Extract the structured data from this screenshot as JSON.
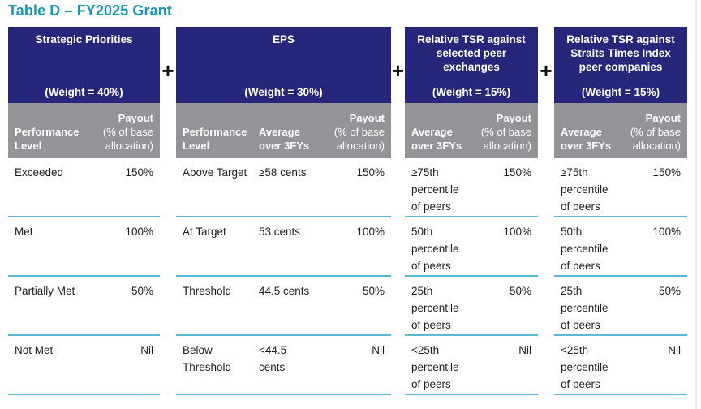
{
  "title": "Table D – FY2025 Grant",
  "plus_sign": "+",
  "colors": {
    "title_teal": "#1898b4",
    "header_navy": "#26277b",
    "subheader_gray": "#939398",
    "row_divider_teal": "#5bb7d2",
    "body_text": "#1e1e21"
  },
  "shared_headers": {
    "performance_level": "Performance Level",
    "average_over_3fys": "Average over 3FYs",
    "payout": "Payout",
    "payout_subtext": "(% of base allocation)"
  },
  "tables": [
    {
      "name": "Strategic Priorities",
      "weight": "(Weight = 40%)",
      "rows": [
        {
          "level": "Exceeded",
          "payout": "150%"
        },
        {
          "level": "Met",
          "payout": "100%"
        },
        {
          "level": "Partially Met",
          "payout": "50%"
        },
        {
          "level": "Not Met",
          "payout": "Nil"
        }
      ]
    },
    {
      "name": "EPS",
      "weight": "(Weight = 30%)",
      "rows": [
        {
          "level": "Above Target",
          "average": "≥58 cents",
          "payout": "150%"
        },
        {
          "level": "At Target",
          "average": "53 cents",
          "payout": "100%"
        },
        {
          "level": "Threshold",
          "average": "44.5 cents",
          "payout": "50%"
        },
        {
          "level": "Below Threshold",
          "average": "<44.5 cents",
          "payout": "Nil"
        }
      ]
    },
    {
      "name": "Relative TSR against selected peer exchanges",
      "weight": "(Weight = 15%)",
      "rows": [
        {
          "average": "≥75th percentile of peers",
          "payout": "150%"
        },
        {
          "average": "50th percentile of peers",
          "payout": "100%"
        },
        {
          "average": "25th percentile of peers",
          "payout": "50%"
        },
        {
          "average": "<25th percentile of peers",
          "payout": "Nil"
        }
      ]
    },
    {
      "name": "Relative TSR against Straits Times Index peer companies",
      "weight": "(Weight = 15%)",
      "rows": [
        {
          "average": "≥75th percentile of peers",
          "payout": "150%"
        },
        {
          "average": "50th percentile of peers",
          "payout": "100%"
        },
        {
          "average": "25th percentile of peers",
          "payout": "50%"
        },
        {
          "average": "<25th percentile of peers",
          "payout": "Nil"
        }
      ]
    }
  ]
}
